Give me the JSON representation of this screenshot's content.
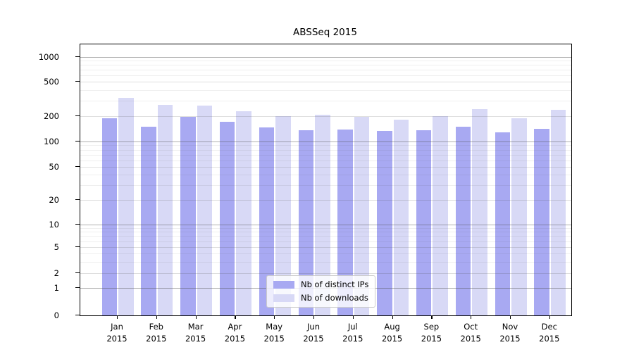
{
  "title": "ABSSeq 2015",
  "chart_data": {
    "type": "bar",
    "title": "ABSSeq 2015",
    "categories": [
      "Jan 2015",
      "Feb 2015",
      "Mar 2015",
      "Apr 2015",
      "May 2015",
      "Jun 2015",
      "Jul 2015",
      "Aug 2015",
      "Sep 2015",
      "Oct 2015",
      "Nov 2015",
      "Dec 2015"
    ],
    "series": [
      {
        "name": "Nb of distinct IPs",
        "color": "#a8a9f2",
        "values": [
          190,
          150,
          197,
          172,
          147,
          137,
          140,
          133,
          135,
          150,
          128,
          141
        ]
      },
      {
        "name": "Nb of downloads",
        "color": "#d8d9f6",
        "values": [
          326,
          272,
          266,
          226,
          200,
          208,
          196,
          180,
          200,
          240,
          189,
          238
        ]
      }
    ],
    "xlabel": "",
    "ylabel": "",
    "yscale": "symlog",
    "ytick_labels": [
      0,
      1,
      2,
      5,
      10,
      20,
      50,
      100,
      200,
      500,
      1000
    ],
    "minor_gridline_values": [
      3,
      4,
      6,
      7,
      8,
      9,
      30,
      40,
      60,
      70,
      80,
      90,
      300,
      400,
      600,
      700,
      800,
      900
    ],
    "ylim": [
      0,
      1400
    ],
    "grid": true,
    "legend_position": "lower center"
  },
  "legend": {
    "items": [
      {
        "label": "Nb of distinct IPs",
        "color": "#a8a9f2"
      },
      {
        "label": "Nb of downloads",
        "color": "#d8d9f6"
      }
    ]
  }
}
